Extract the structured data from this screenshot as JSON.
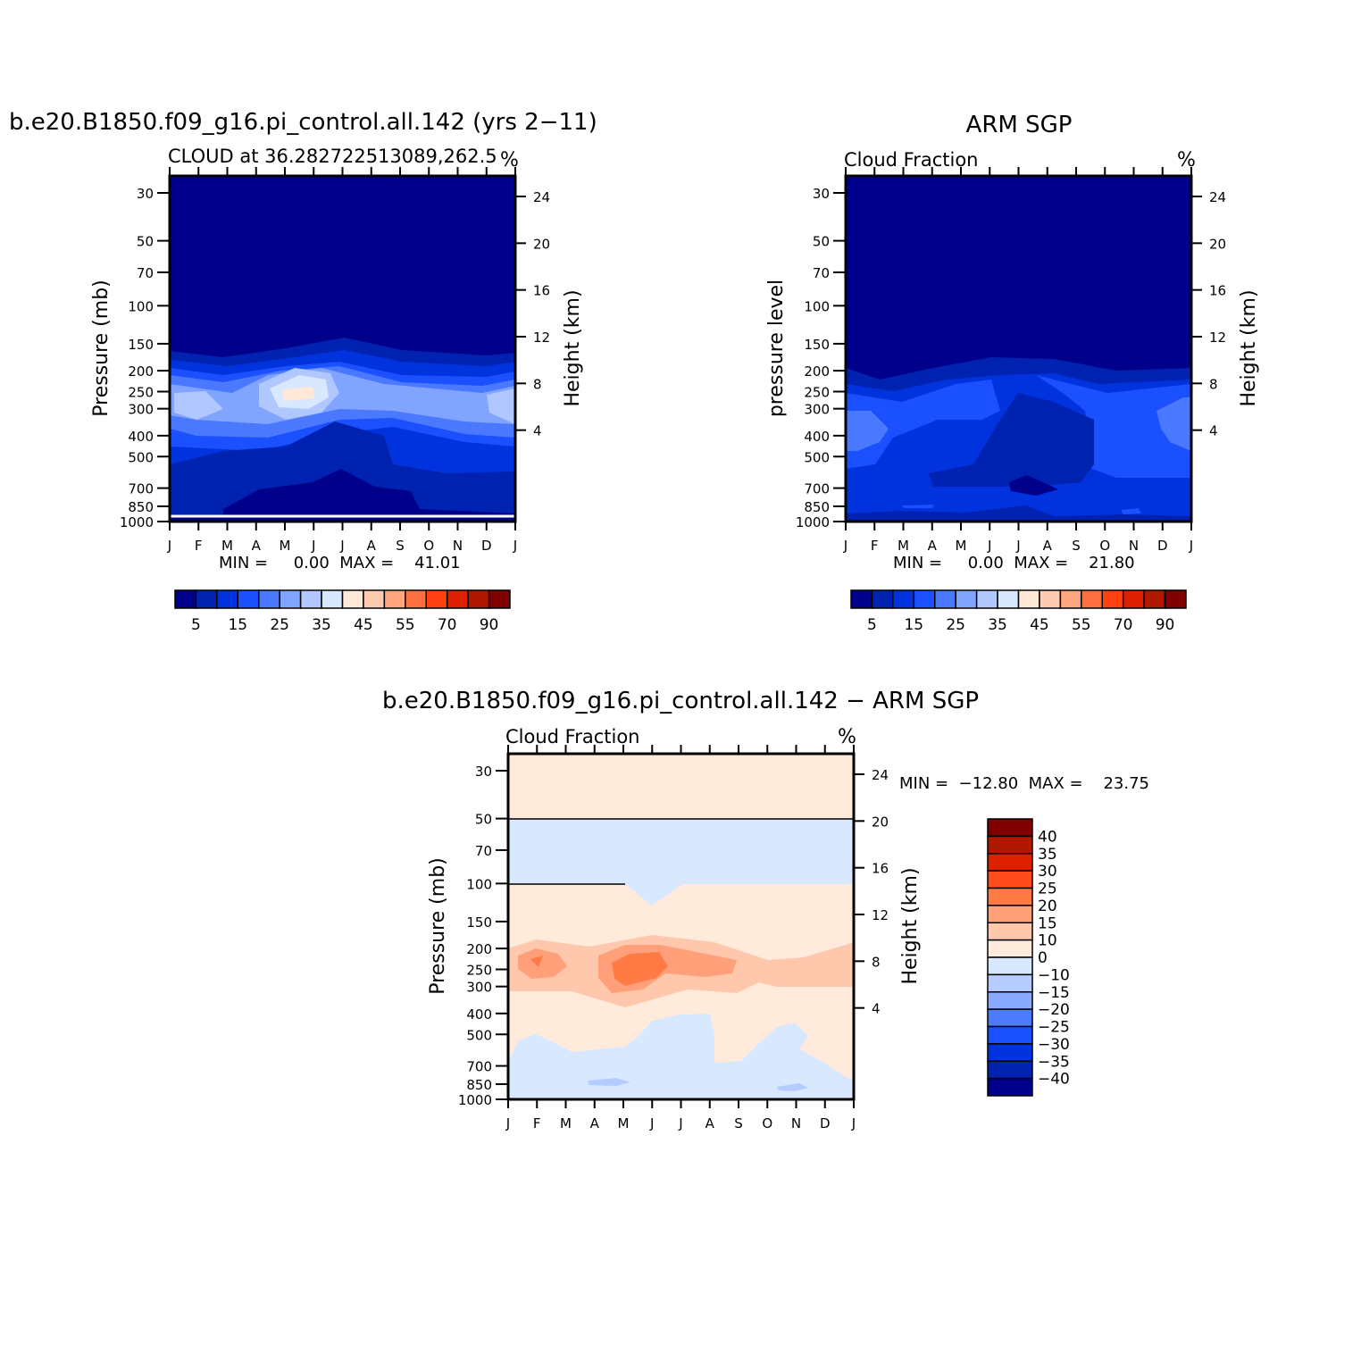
{
  "chart_data": [
    {
      "type": "heatmap",
      "title": "b.e20.B1850.f09_g16.pi_control.all.142 (yrs 2-11)",
      "subtitle": "CLOUD at 36.282722513089,262.5",
      "units": "%",
      "ylabel": "Pressure (mb)",
      "ylabel_right": "Height (km)",
      "x_ticks": [
        "J",
        "F",
        "M",
        "A",
        "M",
        "J",
        "J",
        "A",
        "S",
        "O",
        "N",
        "D",
        "J"
      ],
      "y_ticks": [
        30,
        50,
        70,
        100,
        150,
        200,
        250,
        300,
        400,
        500,
        700,
        850,
        1000
      ],
      "y_right_ticks": [
        24,
        20,
        16,
        12,
        8,
        4
      ],
      "minmax_label": "MIN =     0.00  MAX =    41.01",
      "min": 0.0,
      "max": 41.01,
      "colorbar_labels": [
        "5",
        "15",
        "25",
        "35",
        "45",
        "55",
        "70",
        "90"
      ],
      "colors": [
        "#00008b",
        "#0022b0",
        "#0033dd",
        "#1a50ff",
        "#4a78ff",
        "#80a4ff",
        "#b0c8ff",
        "#d8e8ff",
        "#ffe8d6",
        "#ffcbb0",
        "#ffa680",
        "#ff7040",
        "#ff4010",
        "#dd2000",
        "#b01800",
        "#800000"
      ]
    },
    {
      "type": "heatmap",
      "title": "ARM SGP",
      "subtitle": "Cloud Fraction",
      "units": "%",
      "ylabel": "pressure level",
      "ylabel_right": "Height (km)",
      "x_ticks": [
        "J",
        "F",
        "M",
        "A",
        "M",
        "J",
        "J",
        "A",
        "S",
        "O",
        "N",
        "D",
        "J"
      ],
      "y_ticks": [
        30,
        50,
        70,
        100,
        150,
        200,
        250,
        300,
        400,
        500,
        700,
        850,
        1000
      ],
      "y_right_ticks": [
        24,
        20,
        16,
        12,
        8,
        4
      ],
      "minmax_label": "MIN =     0.00  MAX =    21.80",
      "min": 0.0,
      "max": 21.8,
      "colorbar_labels": [
        "5",
        "15",
        "25",
        "35",
        "45",
        "55",
        "70",
        "90"
      ]
    },
    {
      "type": "heatmap",
      "title": "b.e20.B1850.f09_g16.pi_control.all.142 - ARM SGP",
      "subtitle": "Cloud Fraction",
      "units": "%",
      "ylabel": "Pressure (mb)",
      "ylabel_right": "Height (km)",
      "x_ticks": [
        "J",
        "F",
        "M",
        "A",
        "M",
        "J",
        "J",
        "A",
        "S",
        "O",
        "N",
        "D",
        "J"
      ],
      "y_ticks": [
        30,
        50,
        70,
        100,
        150,
        200,
        250,
        300,
        400,
        500,
        700,
        850,
        1000
      ],
      "y_right_ticks": [
        24,
        20,
        16,
        12,
        8,
        4
      ],
      "minmax_label": "MIN =  -12.80  MAX =    23.75",
      "min": -12.8,
      "max": 23.75,
      "colorbar_labels": [
        "40",
        "35",
        "30",
        "25",
        "20",
        "15",
        "10",
        "0",
        "-10",
        "-15",
        "-20",
        "-25",
        "-30",
        "-35",
        "-40"
      ],
      "colors": [
        "#800000",
        "#b01800",
        "#dd2000",
        "#ff4c1c",
        "#ff7a45",
        "#ffa07a",
        "#ffc8ad",
        "#ffeadb",
        "#d8e8ff",
        "#b4ccff",
        "#8aaaff",
        "#4c7bff",
        "#1a50ff",
        "#0033dd",
        "#0022b0",
        "#00008b"
      ]
    }
  ]
}
